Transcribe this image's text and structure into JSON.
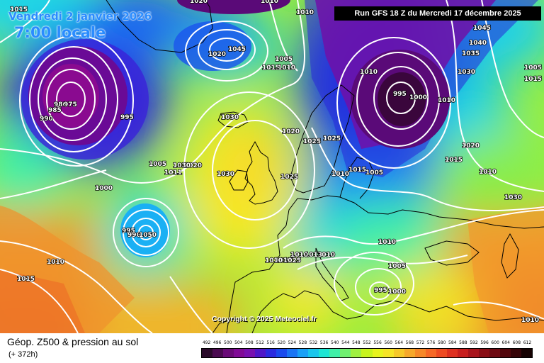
{
  "header": {
    "date": "Vendredi 2 janvier 2026",
    "time": "7:00 locale"
  },
  "run_info": "Run GFS 18 Z du Mercredi 17 décembre 2025",
  "copyright": "Copyright © 2025 Meteociel.fr",
  "footer": {
    "title": "Géop. Z500 & pression au sol",
    "subtitle": "(+ 372h)"
  },
  "legend": {
    "values": [
      "492",
      "496",
      "500",
      "504",
      "508",
      "512",
      "516",
      "520",
      "524",
      "528",
      "532",
      "536",
      "540",
      "544",
      "548",
      "552",
      "556",
      "560",
      "564",
      "568",
      "572",
      "576",
      "580",
      "584",
      "588",
      "592",
      "596",
      "600",
      "604",
      "608",
      "612"
    ],
    "colors": [
      "#2a0a2a",
      "#4a0a50",
      "#6a0a78",
      "#800a96",
      "#7810b0",
      "#4f16c8",
      "#2a2ae0",
      "#1a4aee",
      "#1a74f4",
      "#1aa0f6",
      "#1ac6ec",
      "#1ee6d4",
      "#40f0a8",
      "#70f070",
      "#a0f040",
      "#c8f41e",
      "#e8f41e",
      "#f6e426",
      "#f6c828",
      "#f6a82a",
      "#f68828",
      "#f66826",
      "#ee4a22",
      "#de3020",
      "#c81e1e",
      "#a8141c",
      "#8a0e16",
      "#6e0a12",
      "#52060c",
      "#360408",
      "#160202"
    ]
  },
  "pressure_labels": [
    "1015",
    "1010",
    "1020",
    "1010",
    "1045",
    "1005",
    "1015",
    "1010",
    "1020",
    "995",
    "1000",
    "1010",
    "1045",
    "1040",
    "1035",
    "1030",
    "1030",
    "980",
    "975",
    "985",
    "990",
    "995",
    "1010",
    "1020",
    "1030",
    "1025",
    "1020",
    "1010",
    "1030",
    "1015",
    "1020",
    "1000",
    "1005",
    "1011",
    "1005",
    "1025",
    "1015",
    "1025",
    "1030",
    "1010",
    "995",
    "990",
    "1050",
    "1010",
    "1025",
    "1010",
    "1010",
    "1005",
    "995",
    "1000",
    "1015",
    "1010",
    "1015",
    "1005",
    "1025",
    "1010",
    "1013",
    "1010"
  ],
  "colors": {
    "contour": "#ffffff",
    "coast": "#000000",
    "header_text": "#2a8cff"
  }
}
